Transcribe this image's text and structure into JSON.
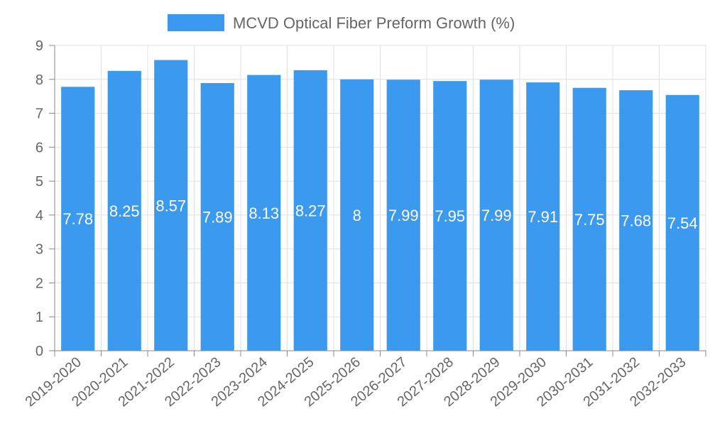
{
  "chart_data": {
    "type": "bar",
    "legend": {
      "label": "MCVD Optical Fiber Preform Growth (%)",
      "color": "#3b99ee",
      "position": "top-center"
    },
    "categories": [
      "2019-2020",
      "2020-2021",
      "2021-2022",
      "2022-2023",
      "2023-2024",
      "2024-2025",
      "2025-2026",
      "2026-2027",
      "2027-2028",
      "2028-2029",
      "2029-2030",
      "2030-2031",
      "2031-2032",
      "2032-2033"
    ],
    "values": [
      7.78,
      8.25,
      8.57,
      7.89,
      8.13,
      8.27,
      8,
      7.99,
      7.95,
      7.99,
      7.91,
      7.75,
      7.68,
      7.54
    ],
    "ylim": [
      0,
      9
    ],
    "yticks": [
      "0",
      "1",
      "2",
      "3",
      "4",
      "5",
      "6",
      "7",
      "8",
      "9"
    ],
    "grid": true,
    "bar_color": "#3b99ee",
    "xlabel": "",
    "ylabel": ""
  }
}
